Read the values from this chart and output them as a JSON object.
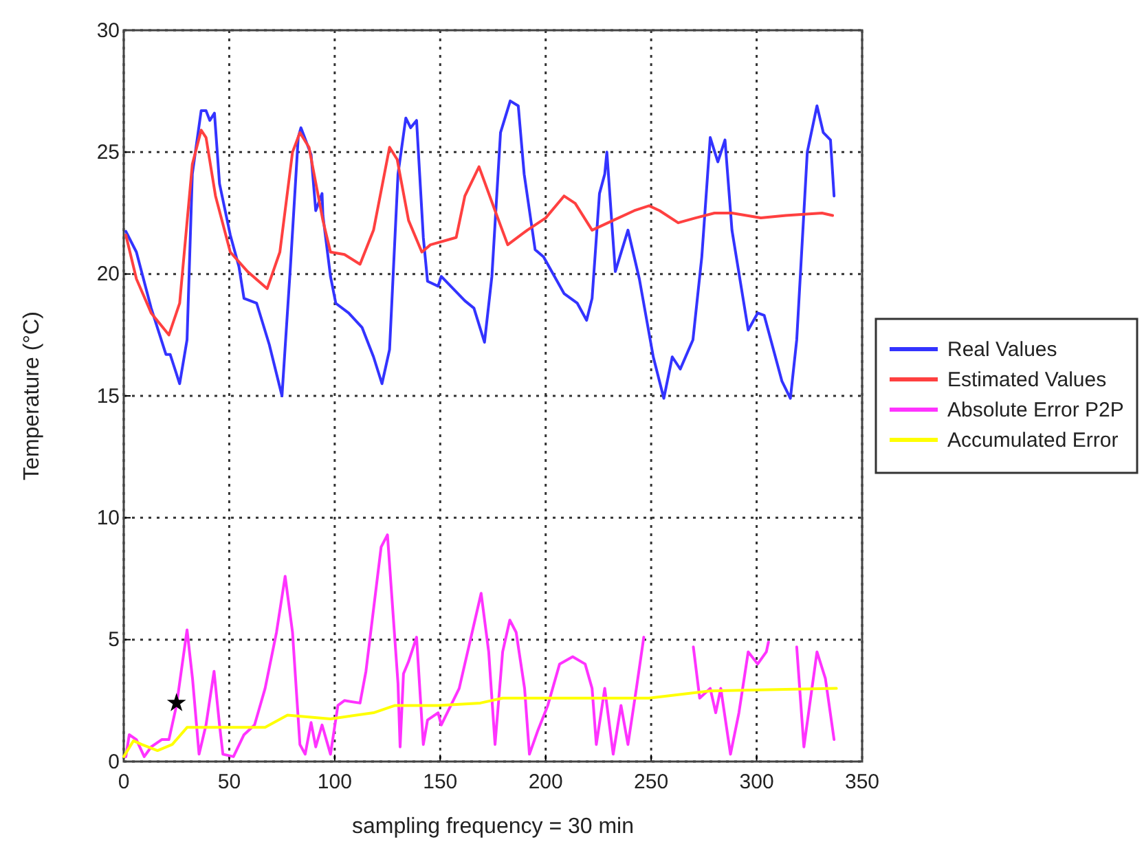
{
  "chart_data": {
    "type": "line",
    "xlabel": "sampling frequency = 30 min",
    "ylabel": "Temperature (°C)",
    "xlim": [
      0,
      350
    ],
    "xticks": [
      0,
      50,
      100,
      150,
      200,
      250,
      300,
      350
    ],
    "ylim": [
      0,
      30
    ],
    "yticks": [
      0,
      5,
      10,
      15,
      20,
      25,
      30
    ],
    "grid": true,
    "legend": "right",
    "line_style": "solid",
    "marker": "none",
    "series": [
      {
        "name": "Real Values",
        "color": "#3333ff",
        "x": [
          1,
          6,
          13,
          20,
          22,
          26.5,
          30,
          32.5,
          36.7,
          39,
          40.8,
          43,
          45.4,
          50.5,
          54.6,
          57,
          63,
          69,
          75,
          79,
          82.7,
          84,
          88.8,
          91,
          94,
          94.4,
          98,
          100.5,
          106.6,
          113,
          118.4,
          122.4,
          126,
          130,
          133.7,
          136,
          138.8,
          142,
          144,
          149,
          150.5,
          161.7,
          166,
          171,
          174.5,
          178.6,
          183.2,
          187,
          189.8,
          195,
          199,
          208.7,
          215,
          219.4,
          222,
          225.5,
          228,
          229,
          231.6,
          233,
          239,
          244.4,
          251,
          256,
          260,
          263.8,
          269.8,
          274,
          278,
          281.6,
          285,
          288.3,
          296,
          300.5,
          303.6,
          312,
          316,
          319,
          324,
          328.6,
          331.6,
          335,
          336.7
        ],
        "values": [
          21.75,
          20.9,
          18.6,
          16.7,
          16.7,
          15.5,
          17.3,
          24.1,
          26.7,
          26.7,
          26.3,
          26.6,
          23.7,
          21.6,
          20.3,
          19.0,
          18.8,
          17.1,
          15.0,
          20.3,
          25.6,
          26.0,
          24.9,
          22.6,
          23.3,
          22.4,
          19.9,
          18.8,
          18.4,
          17.8,
          16.6,
          15.5,
          16.9,
          24.1,
          26.4,
          26.0,
          26.3,
          21.5,
          19.7,
          19.5,
          19.9,
          18.9,
          18.6,
          17.2,
          19.9,
          25.8,
          27.1,
          26.9,
          24.1,
          21.0,
          20.7,
          19.2,
          18.8,
          18.1,
          19.0,
          23.3,
          24.1,
          25.0,
          21.8,
          20.1,
          21.8,
          19.8,
          16.6,
          14.9,
          16.6,
          16.1,
          17.3,
          20.7,
          25.6,
          24.6,
          25.5,
          21.8,
          17.7,
          18.4,
          18.3,
          15.6,
          14.9,
          17.3,
          25.0,
          26.9,
          25.8,
          25.5,
          23.2
        ]
      },
      {
        "name": "Estimated Values",
        "color": "#ff4040",
        "x": [
          1,
          6,
          13,
          21.4,
          26.5,
          32.5,
          36.7,
          39,
          43.5,
          50.5,
          58.7,
          68,
          74,
          80,
          83.5,
          87.8,
          94.4,
          98,
          104.6,
          112,
          118.4,
          126,
          129.6,
          135,
          141.3,
          145.4,
          157.6,
          161.7,
          168.4,
          176,
          182,
          191.3,
          200,
          208.7,
          214,
          222,
          232,
          242,
          249,
          254,
          262.8,
          271,
          280,
          288.3,
          302,
          313.8,
          331,
          336
        ],
        "values": [
          21.6,
          19.8,
          18.4,
          17.5,
          18.8,
          24.5,
          25.9,
          25.6,
          23.2,
          20.9,
          20.1,
          19.4,
          20.9,
          25.0,
          25.8,
          25.2,
          22.2,
          20.9,
          20.8,
          20.4,
          21.8,
          25.2,
          24.7,
          22.2,
          20.9,
          21.2,
          21.5,
          23.2,
          24.4,
          22.6,
          21.2,
          21.8,
          22.3,
          23.2,
          22.9,
          21.8,
          22.2,
          22.6,
          22.8,
          22.6,
          22.1,
          22.3,
          22.5,
          22.5,
          22.3,
          22.4,
          22.5,
          22.4
        ]
      },
      {
        "name": "Absolute Error P2P",
        "color": "#ff33ff",
        "x": [
          1,
          2.6,
          6,
          9.7,
          13,
          18,
          21.4,
          25,
          30,
          32.6,
          35.7,
          39,
          42.8,
          45.4,
          47,
          52,
          57,
          62,
          67,
          72.4,
          76.5,
          80,
          83.5,
          86,
          88.8,
          91,
          94,
          98,
          101.5,
          104.6,
          112,
          114.8,
          122,
          125,
          130,
          131,
          132.6,
          135,
          138.8,
          142,
          144,
          149,
          150.5,
          159,
          169.4,
          173,
          176,
          179.6,
          183,
          186,
          190,
          192.3,
          196.4,
          201,
          206.6,
          212.8,
          218.7,
          222,
          224,
          228,
          232,
          235.7,
          239,
          243,
          246.5,
          258,
          270,
          273,
          278,
          280.6,
          283,
          287.6,
          291.6,
          296,
          300.5,
          304.6,
          305.6,
          312,
          319,
          322.4,
          328.6,
          332.6,
          336.7
        ],
        "values": [
          0.2,
          1.1,
          0.9,
          0.2,
          0.6,
          0.9,
          0.9,
          2.3,
          5.4,
          3.4,
          0.3,
          1.5,
          3.7,
          1.5,
          0.3,
          0.2,
          1.1,
          1.5,
          3.0,
          5.3,
          7.6,
          5.3,
          0.7,
          0.3,
          1.6,
          0.6,
          1.5,
          0.3,
          2.3,
          2.5,
          2.4,
          3.7,
          8.8,
          9.3,
          3.2,
          0.6,
          3.6,
          4.1,
          5.1,
          0.7,
          1.7,
          2.0,
          1.5,
          3.0,
          6.9,
          4.5,
          0.7,
          4.5,
          5.8,
          5.3,
          3.0,
          0.3,
          1.3,
          2.3,
          4.0,
          4.3,
          4.0,
          3.0,
          0.7,
          3.0,
          0.3,
          2.3,
          0.7,
          3.0,
          5.1,
          null,
          4.7,
          2.6,
          3.0,
          2.0,
          3.0,
          0.3,
          2.0,
          4.5,
          4.0,
          4.5,
          4.9,
          null,
          4.7,
          0.6,
          4.5,
          3.4,
          0.9
        ]
      },
      {
        "name": "Accumulated Error",
        "color": "#ffff00",
        "x": [
          0,
          4.6,
          8.5,
          16,
          23,
          30,
          36.7,
          52,
          67,
          77.6,
          98,
          118.4,
          128.6,
          149,
          169,
          179.6,
          200,
          249,
          278,
          337.8
        ],
        "values": [
          0.2,
          0.85,
          0.7,
          0.45,
          0.7,
          1.4,
          1.4,
          1.4,
          1.4,
          1.9,
          1.75,
          2.0,
          2.3,
          2.3,
          2.4,
          2.6,
          2.6,
          2.6,
          2.9,
          3.0
        ]
      },
      {
        "type": "scatter",
        "color": "#000000",
        "marker": "star",
        "x": [
          25
        ],
        "values": [
          2.4
        ]
      }
    ]
  }
}
